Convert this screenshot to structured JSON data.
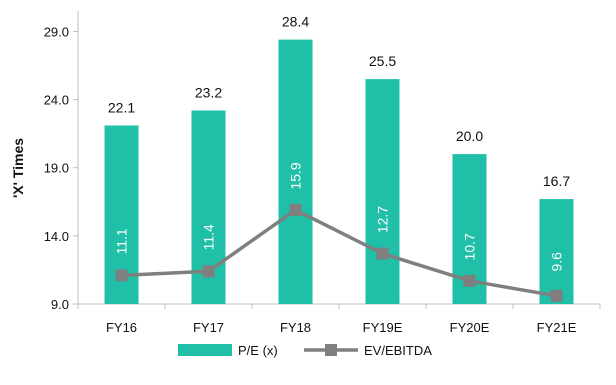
{
  "chart_data": {
    "type": "bar",
    "title": "",
    "xlabel": "",
    "ylabel": "'X' Times",
    "categories": [
      "FY16",
      "FY17",
      "FY18",
      "FY19E",
      "FY20E",
      "FY21E"
    ],
    "yticks": [
      "9.0",
      "14.0",
      "19.0",
      "24.0",
      "29.0"
    ],
    "ylim": [
      9.0,
      30.5
    ],
    "grid": false,
    "legend_position": "bottom",
    "series": [
      {
        "name": "P/E (x)",
        "type": "bar",
        "color": "#1fbfa8",
        "values": [
          22.1,
          23.2,
          28.4,
          25.5,
          20.0,
          16.7
        ],
        "labels": [
          "22.1",
          "23.2",
          "28.4",
          "25.5",
          "20.0",
          "16.7"
        ]
      },
      {
        "name": "EV/EBITDA",
        "type": "line",
        "color": "#7f7f7f",
        "marker": "square",
        "values": [
          11.1,
          11.4,
          15.9,
          12.7,
          10.7,
          9.6
        ],
        "labels": [
          "11.1",
          "11.4",
          "15.9",
          "12.7",
          "10.7",
          "9.6"
        ]
      }
    ]
  }
}
